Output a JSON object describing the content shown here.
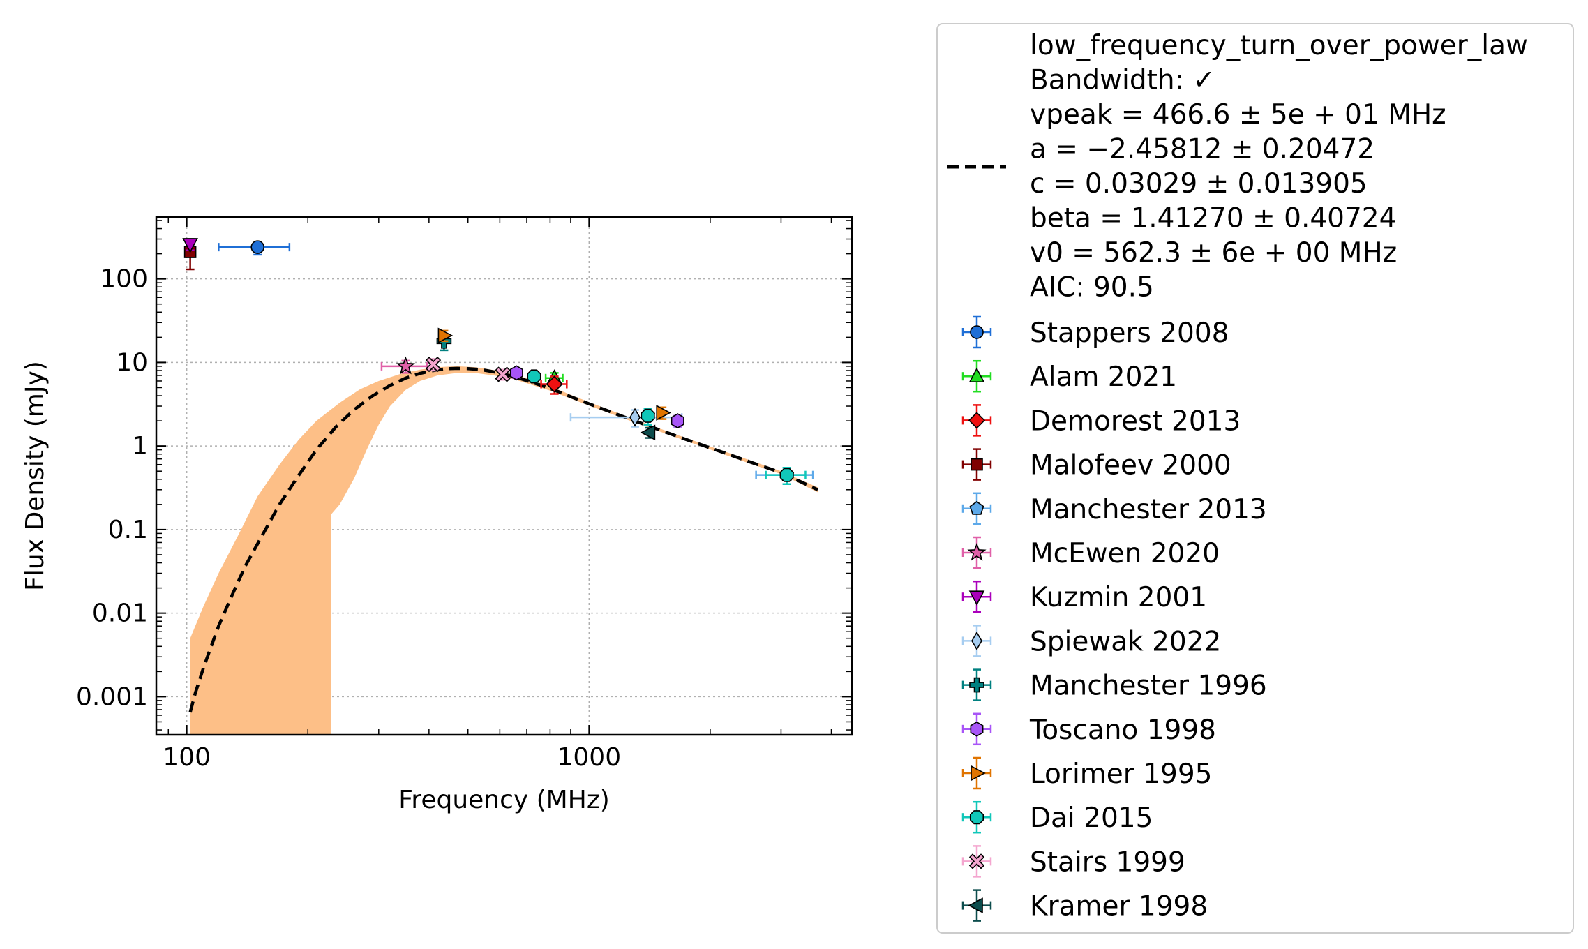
{
  "chart_data": {
    "type": "scatter",
    "title": "",
    "xlabel": "Frequency (MHz)",
    "ylabel": "Flux Density (mJy)",
    "xscale": "log",
    "yscale": "log",
    "xlim": [
      84,
      4500
    ],
    "ylim": [
      0.00035,
      550
    ],
    "xticks": [
      {
        "v": 100,
        "label": "100"
      },
      {
        "v": 1000,
        "label": "1000"
      }
    ],
    "yticks": [
      {
        "v": 0.001,
        "label": "0.001"
      },
      {
        "v": 0.01,
        "label": "0.01"
      },
      {
        "v": 0.1,
        "label": "0.1"
      },
      {
        "v": 1,
        "label": "1"
      },
      {
        "v": 10,
        "label": "10"
      },
      {
        "v": 100,
        "label": "100"
      }
    ],
    "grid": true,
    "legend_position": "outside-right",
    "fit": {
      "name": "low_frequency_turn_over_power_law",
      "legend_lines": [
        "low_frequency_turn_over_power_law",
        "Bandwidth: ✓",
        "vpeak = 466.6 ± 5e + 01 MHz",
        "a = −2.45812 ± 0.20472",
        "c = 0.03029 ± 0.013905",
        "beta = 1.41270 ± 0.40724",
        "v0 = 562.3 ± 6e + 00 MHz",
        "AIC: 90.5"
      ],
      "color": "#000000",
      "band_color": "#fdbf87",
      "line_points": [
        [
          102,
          0.00065
        ],
        [
          105,
          0.0011
        ],
        [
          110,
          0.0022
        ],
        [
          115,
          0.004
        ],
        [
          120,
          0.007
        ],
        [
          130,
          0.017
        ],
        [
          140,
          0.037
        ],
        [
          155,
          0.09
        ],
        [
          170,
          0.2
        ],
        [
          190,
          0.45
        ],
        [
          210,
          0.9
        ],
        [
          235,
          1.7
        ],
        [
          260,
          2.7
        ],
        [
          290,
          4.0
        ],
        [
          320,
          5.3
        ],
        [
          350,
          6.5
        ],
        [
          380,
          7.4
        ],
        [
          410,
          8.0
        ],
        [
          440,
          8.4
        ],
        [
          470,
          8.5
        ],
        [
          500,
          8.45
        ],
        [
          540,
          8.2
        ],
        [
          590,
          7.6
        ],
        [
          650,
          6.8
        ],
        [
          720,
          5.8
        ],
        [
          800,
          4.9
        ],
        [
          900,
          3.9
        ],
        [
          1000,
          3.2
        ],
        [
          1200,
          2.3
        ],
        [
          1400,
          1.75
        ],
        [
          1700,
          1.25
        ],
        [
          2000,
          0.95
        ],
        [
          2500,
          0.65
        ],
        [
          3000,
          0.48
        ],
        [
          3700,
          0.3
        ]
      ],
      "band_upper": [
        [
          102,
          0.005
        ],
        [
          110,
          0.012
        ],
        [
          120,
          0.03
        ],
        [
          135,
          0.09
        ],
        [
          150,
          0.25
        ],
        [
          170,
          0.6
        ],
        [
          190,
          1.2
        ],
        [
          210,
          2.0
        ],
        [
          240,
          3.3
        ],
        [
          270,
          4.8
        ],
        [
          300,
          6.0
        ],
        [
          340,
          7.3
        ],
        [
          380,
          8.2
        ],
        [
          420,
          8.8
        ],
        [
          470,
          9.0
        ],
        [
          520,
          8.8
        ],
        [
          580,
          8.1
        ],
        [
          650,
          7.2
        ],
        [
          720,
          6.2
        ],
        [
          800,
          5.2
        ],
        [
          900,
          4.1
        ],
        [
          1000,
          3.35
        ],
        [
          1200,
          2.4
        ],
        [
          1400,
          1.82
        ],
        [
          1700,
          1.3
        ],
        [
          2000,
          0.99
        ],
        [
          2500,
          0.68
        ],
        [
          3000,
          0.5
        ],
        [
          3700,
          0.32
        ]
      ],
      "band_lower": [
        [
          3700,
          0.28
        ],
        [
          3000,
          0.46
        ],
        [
          2500,
          0.62
        ],
        [
          2000,
          0.91
        ],
        [
          1700,
          1.2
        ],
        [
          1400,
          1.68
        ],
        [
          1200,
          2.2
        ],
        [
          1000,
          3.05
        ],
        [
          900,
          3.7
        ],
        [
          800,
          4.6
        ],
        [
          720,
          5.4
        ],
        [
          650,
          6.3
        ],
        [
          580,
          7.0
        ],
        [
          520,
          7.5
        ],
        [
          470,
          7.5
        ],
        [
          420,
          7.0
        ],
        [
          380,
          6.0
        ],
        [
          350,
          4.7
        ],
        [
          320,
          3.0
        ],
        [
          300,
          1.8
        ],
        [
          280,
          0.9
        ],
        [
          260,
          0.4
        ],
        [
          240,
          0.2
        ],
        [
          228,
          0.15
        ],
        [
          228,
          0.00035
        ],
        [
          102,
          0.00035
        ]
      ]
    },
    "series": [
      {
        "name": "Stappers 2008",
        "marker": "circle",
        "color": "#1f6fd6",
        "points": [
          {
            "x": 150,
            "y": 240,
            "xerr": [
              30,
              30
            ],
            "yerr": [
              45,
              30
            ]
          }
        ]
      },
      {
        "name": "Alam 2021",
        "marker": "triangle-up",
        "color": "#22dd22",
        "points": [
          {
            "x": 820,
            "y": 6.5,
            "xerr": [
              40,
              40
            ],
            "yerr": [
              1,
              1
            ]
          }
        ]
      },
      {
        "name": "Demorest 2013",
        "marker": "diamond",
        "color": "#ee1111",
        "points": [
          {
            "x": 820,
            "y": 5.5,
            "xerr": [
              60,
              60
            ],
            "yerr": [
              1.3,
              1.3
            ]
          }
        ]
      },
      {
        "name": "Malofeev 2000",
        "marker": "square",
        "color": "#800000",
        "points": [
          {
            "x": 102,
            "y": 210,
            "xerr": [
              0,
              0
            ],
            "yerr": [
              80,
              60
            ]
          }
        ]
      },
      {
        "name": "Manchester 2013",
        "marker": "pentagon",
        "color": "#5da9e9",
        "points": [
          {
            "x": 1400,
            "y": 2.3,
            "xerr": [
              0,
              0
            ],
            "yerr": [
              0.5,
              0.5
            ]
          },
          {
            "x": 3100,
            "y": 0.45,
            "xerr": [
              500,
              500
            ],
            "yerr": [
              0.1,
              0.1
            ]
          }
        ]
      },
      {
        "name": "McEwen 2020",
        "marker": "star",
        "color": "#e060a8",
        "points": [
          {
            "x": 350,
            "y": 9.0,
            "xerr": [
              45,
              45
            ],
            "yerr": [
              1.5,
              1.5
            ]
          }
        ]
      },
      {
        "name": "Kuzmin 2001",
        "marker": "triangle-down",
        "color": "#aa00bb",
        "points": [
          {
            "x": 102,
            "y": 260,
            "xerr": [
              0,
              0
            ],
            "yerr": [
              40,
              40
            ]
          }
        ]
      },
      {
        "name": "Spiewak 2022",
        "marker": "thin-diamond",
        "color": "#a6cdf0",
        "points": [
          {
            "x": 1300,
            "y": 2.2,
            "xerr": [
              400,
              400
            ],
            "yerr": [
              0.5,
              0.5
            ]
          }
        ]
      },
      {
        "name": "Manchester 1996",
        "marker": "plus",
        "color": "#008080",
        "points": [
          {
            "x": 436,
            "y": 18,
            "xerr": [
              0,
              0
            ],
            "yerr": [
              4,
              4
            ]
          }
        ]
      },
      {
        "name": "Toscano 1998",
        "marker": "hexagon",
        "color": "#a855f7",
        "points": [
          {
            "x": 660,
            "y": 7.5,
            "xerr": [
              0,
              0
            ],
            "yerr": [
              1,
              1
            ]
          },
          {
            "x": 1660,
            "y": 2.0,
            "xerr": [
              0,
              0
            ],
            "yerr": [
              0.3,
              0.3
            ]
          }
        ]
      },
      {
        "name": "Lorimer 1995",
        "marker": "triangle-right",
        "color": "#e07400",
        "points": [
          {
            "x": 436,
            "y": 21,
            "xerr": [
              0,
              0
            ],
            "yerr": [
              3,
              3
            ]
          },
          {
            "x": 1520,
            "y": 2.5,
            "xerr": [
              0,
              0
            ],
            "yerr": [
              0.4,
              0.4
            ]
          }
        ]
      },
      {
        "name": "Dai 2015",
        "marker": "octagon",
        "color": "#11c7b9",
        "points": [
          {
            "x": 730,
            "y": 6.8,
            "xerr": [
              0,
              0
            ],
            "yerr": [
              1,
              1
            ]
          },
          {
            "x": 1400,
            "y": 2.3,
            "xerr": [
              0,
              0
            ],
            "yerr": [
              0.5,
              0.5
            ]
          },
          {
            "x": 3100,
            "y": 0.45,
            "xerr": [
              350,
              350
            ],
            "yerr": [
              0.1,
              0.1
            ]
          }
        ]
      },
      {
        "name": "Stairs 1999",
        "marker": "x-filled",
        "color": "#f4a6cf",
        "points": [
          {
            "x": 410,
            "y": 9.5,
            "xerr": [
              0,
              0
            ],
            "yerr": [
              1.5,
              1.5
            ]
          },
          {
            "x": 610,
            "y": 7.2,
            "xerr": [
              0,
              0
            ],
            "yerr": [
              1,
              1
            ]
          }
        ]
      },
      {
        "name": "Kramer 1998",
        "marker": "triangle-left",
        "color": "#0d4d4d",
        "points": [
          {
            "x": 1410,
            "y": 1.45,
            "xerr": [
              0,
              0
            ],
            "yerr": [
              0.2,
              0.2
            ]
          }
        ]
      }
    ]
  }
}
